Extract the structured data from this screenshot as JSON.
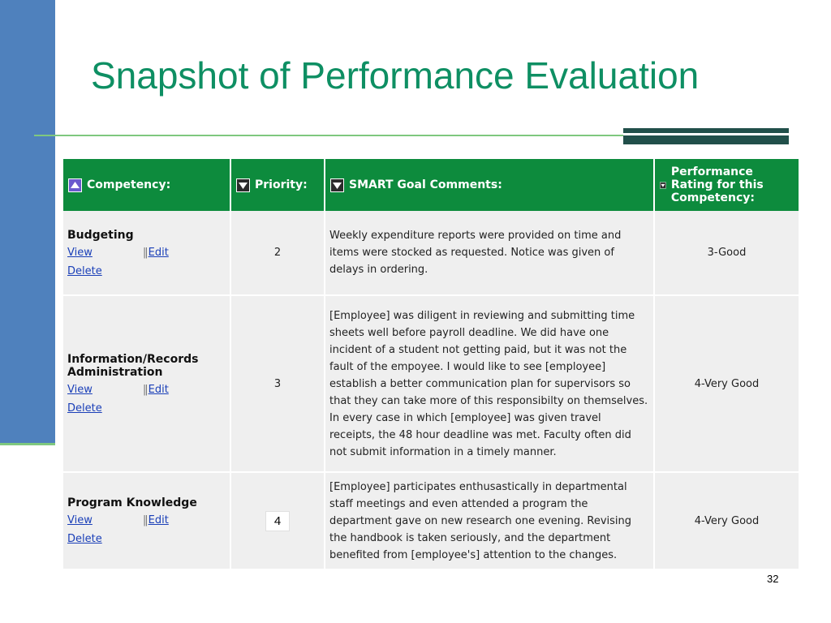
{
  "slide": {
    "title": "Snapshot of Performance Evaluation",
    "page_number": "32"
  },
  "colors": {
    "sidebar": "#4f81bd",
    "accent_line": "#7fc87f",
    "title": "#0e8f63",
    "header_bg": "#0d8b3d",
    "dark_bar": "#214f4a",
    "link": "#1a3fb8"
  },
  "table": {
    "headers": {
      "competency": "Competency:",
      "priority": "Priority:",
      "comments": "SMART Goal Comments:",
      "rating": "Performance Rating for this Competency:"
    },
    "sort_icons": {
      "competency": "sort-ascending-icon",
      "others": "sort-descending-icon"
    },
    "rows": [
      {
        "competency": "Budgeting",
        "view": "View",
        "edit": "Edit",
        "delete": "Delete",
        "priority": "2",
        "comments": "Weekly expenditure reports were provided on time and items were stocked as requested. Notice was given of delays in ordering.",
        "rating": "3-Good"
      },
      {
        "competency": "Information/Records Administration",
        "view": "View",
        "edit": "Edit",
        "delete": "Delete",
        "priority": "3",
        "comments": "[Employee] was diligent in reviewing and submitting time sheets well before payroll deadline. We did have one incident of a student not getting paid, but it was not the fault of the empoyee. I would like to see [employee] establish a better communication plan for supervisors so that they can take more of this responsibilty on themselves. In every case in which [employee] was given travel receipts, the 48 hour deadline was met. Faculty often did not submit information in a timely manner.",
        "rating": "4-Very Good"
      },
      {
        "competency": "Program Knowledge",
        "view": "View",
        "edit": "Edit",
        "delete": "Delete",
        "priority": "4",
        "comments": "[Employee] participates enthusastically in departmental staff meetings and even attended a program the department gave on new research one evening. Revising the handbook is taken seriously, and the department benefited from [employee's] attention to the changes.",
        "rating": "4-Very Good"
      }
    ]
  }
}
